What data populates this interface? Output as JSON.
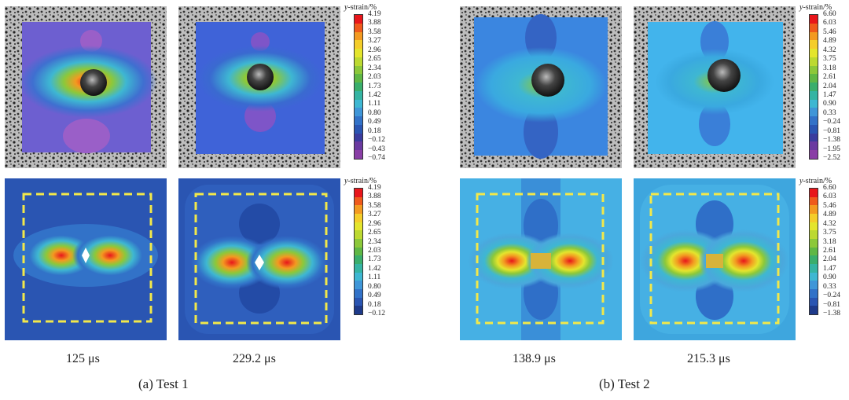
{
  "colorbar_title_var": "y",
  "colorbar_title_rest": "-strain/%",
  "test1_ticks": [
    "4.19",
    "3.88",
    "3.58",
    "3.27",
    "2.96",
    "2.65",
    "2.34",
    "2.03",
    "1.73",
    "1.42",
    "1.11",
    "0.80",
    "0.49",
    "0.18",
    "−0.12",
    "−0.43",
    "−0.74"
  ],
  "test1_ticks_bottom": [
    "4.19",
    "3.88",
    "3.58",
    "3.27",
    "2.96",
    "2.65",
    "2.34",
    "2.03",
    "1.73",
    "1.42",
    "1.11",
    "0.80",
    "0.49",
    "0.18",
    "−0.12"
  ],
  "test2_ticks": [
    "6.60",
    "6.03",
    "5.46",
    "4.89",
    "4.32",
    "3.75",
    "3.18",
    "2.61",
    "2.04",
    "1.47",
    "0.90",
    "0.33",
    "−0.24",
    "−0.81",
    "−1.38",
    "−1.95",
    "−2.52"
  ],
  "test2_ticks_bottom": [
    "6.60",
    "6.03",
    "5.46",
    "4.89",
    "4.32",
    "3.75",
    "3.18",
    "2.61",
    "2.04",
    "1.47",
    "0.90",
    "0.33",
    "−0.24",
    "−0.81",
    "−1.38"
  ],
  "colors17": [
    "#e8161b",
    "#ef5a1c",
    "#f39a21",
    "#f4cd2a",
    "#e4e52d",
    "#bcd931",
    "#8cc83a",
    "#5fb745",
    "#3aae6c",
    "#35b4a3",
    "#3eb7d2",
    "#3f96d8",
    "#3272c8",
    "#2a55b2",
    "#3a3c9e",
    "#6a3aa0",
    "#8a3fa6"
  ],
  "colors15": [
    "#e8161b",
    "#ef5a1c",
    "#f39a21",
    "#f4cd2a",
    "#e4e52d",
    "#bcd931",
    "#8cc83a",
    "#5fb745",
    "#3aae6c",
    "#35b4a3",
    "#3eb7d2",
    "#3f96d8",
    "#3272c8",
    "#2a55b2",
    "#1e3a8a"
  ],
  "times": {
    "t1a": "125 μs",
    "t1b": "229.2 μs",
    "t2a": "138.9 μs",
    "t2b": "215.3 μs"
  },
  "subcaptions": {
    "a": "(a) Test 1",
    "b": "(b) Test 2"
  }
}
